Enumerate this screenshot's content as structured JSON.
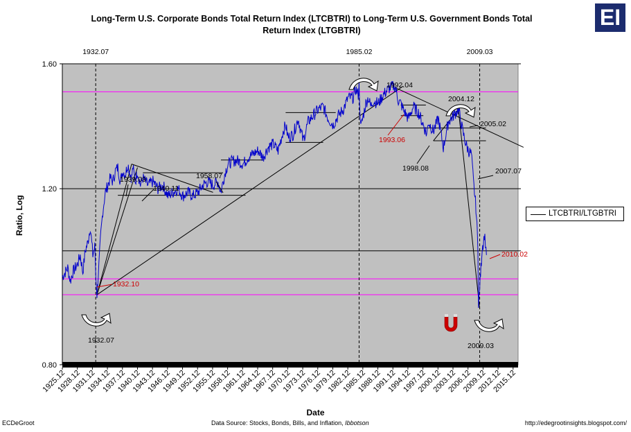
{
  "chart_data": {
    "type": "line",
    "title": "Long-Term U.S. Corporate Bonds Total Return Index (LTCBTRI) to Long-Term U.S. Government Bonds Total Return Index (LTGBTRI)",
    "title_line1": "Long-Term U.S. Corporate Bonds Total Return Index (LTCBTRI) to Long-Term U.S. Government Bonds Total",
    "title_line2": "Return Index (LTGBTRI)",
    "xlabel": "Date",
    "ylabel": "Ratio, Log",
    "y_scale": "log",
    "ylim": [
      0.8,
      1.6
    ],
    "xlim": [
      1925.917,
      2016.917
    ],
    "y_ticks": [
      "1.60",
      "1.20",
      "0.80"
    ],
    "x_ticks": [
      "1925.12",
      "1928.12",
      "1931.12",
      "1934.12",
      "1937.12",
      "1940.12",
      "1943.12",
      "1946.12",
      "1949.12",
      "1952.12",
      "1955.12",
      "1958.12",
      "1961.12",
      "1964.12",
      "1967.12",
      "1970.12",
      "1973.12",
      "1976.12",
      "1979.12",
      "1982.12",
      "1985.12",
      "1988.12",
      "1991.12",
      "1994.12",
      "1997.12",
      "2000.12",
      "2003.12",
      "2006.12",
      "2009.12",
      "2012.12",
      "2015.12"
    ],
    "grid": "horizontal",
    "legend_position": "right",
    "series": [
      {
        "name": "LTCBTRI/LTGBTRI",
        "color": "#0000cc",
        "x": [
          1925.92,
          1926.5,
          1927.0,
          1927.5,
          1928.0,
          1928.5,
          1929.0,
          1929.5,
          1930.0,
          1930.5,
          1931.0,
          1931.5,
          1932.0,
          1932.4,
          1932.6,
          1932.83,
          1933.0,
          1933.3,
          1933.6,
          1934.0,
          1934.5,
          1935.0,
          1935.5,
          1936.0,
          1936.5,
          1937.0,
          1937.5,
          1938.0,
          1938.5,
          1939.0,
          1939.5,
          1939.75,
          1940.0,
          1940.5,
          1940.92,
          1941.5,
          1942.0,
          1943.0,
          1944.0,
          1945.0,
          1946.0,
          1947.0,
          1948.0,
          1949.0,
          1950.0,
          1951.0,
          1952.0,
          1953.0,
          1954.0,
          1955.0,
          1956.0,
          1957.0,
          1957.58,
          1958.0,
          1958.5,
          1959.0,
          1960.0,
          1961.0,
          1962.0,
          1963.0,
          1964.0,
          1965.0,
          1966.0,
          1967.0,
          1968.0,
          1969.0,
          1970.0,
          1970.5,
          1971.0,
          1972.0,
          1973.0,
          1974.0,
          1975.0,
          1976.0,
          1977.0,
          1978.0,
          1979.0,
          1980.0,
          1981.0,
          1982.0,
          1983.0,
          1984.0,
          1984.5,
          1985.0,
          1985.17,
          1985.5,
          1986.0,
          1986.5,
          1987.0,
          1987.5,
          1988.0,
          1989.0,
          1990.0,
          1991.0,
          1992.0,
          1992.33,
          1993.0,
          1993.5,
          1994.0,
          1995.0,
          1996.0,
          1997.0,
          1998.0,
          1998.67,
          1999.0,
          2000.0,
          2001.0,
          2002.0,
          2003.0,
          2004.0,
          2004.92,
          2005.17,
          2005.5,
          2006.0,
          2006.5,
          2007.0,
          2007.58,
          2008.0,
          2008.5,
          2008.9,
          2009.0,
          2009.25,
          2009.5,
          2009.75,
          2010.0,
          2010.17,
          2010.4,
          2010.6
        ],
        "y": [
          0.98,
          0.99,
          1.0,
          0.97,
          0.99,
          1.0,
          1.01,
          1.03,
          0.99,
          1.04,
          1.06,
          1.1,
          1.03,
          1.05,
          0.98,
          0.94,
          0.97,
          1.02,
          1.08,
          1.14,
          1.19,
          1.21,
          1.23,
          1.22,
          1.25,
          1.26,
          1.22,
          1.25,
          1.24,
          1.27,
          1.24,
          1.23,
          1.26,
          1.22,
          1.25,
          1.21,
          1.23,
          1.21,
          1.22,
          1.2,
          1.21,
          1.18,
          1.19,
          1.2,
          1.18,
          1.19,
          1.18,
          1.19,
          1.21,
          1.22,
          1.21,
          1.22,
          1.19,
          1.22,
          1.25,
          1.27,
          1.28,
          1.28,
          1.27,
          1.29,
          1.3,
          1.31,
          1.29,
          1.32,
          1.33,
          1.31,
          1.37,
          1.39,
          1.35,
          1.36,
          1.41,
          1.34,
          1.4,
          1.42,
          1.44,
          1.45,
          1.41,
          1.39,
          1.42,
          1.44,
          1.48,
          1.48,
          1.51,
          1.49,
          1.52,
          1.38,
          1.42,
          1.46,
          1.48,
          1.45,
          1.47,
          1.46,
          1.49,
          1.51,
          1.52,
          1.52,
          1.47,
          1.46,
          1.44,
          1.41,
          1.45,
          1.43,
          1.39,
          1.36,
          1.4,
          1.37,
          1.41,
          1.32,
          1.4,
          1.42,
          1.44,
          1.43,
          1.4,
          1.36,
          1.33,
          1.31,
          1.3,
          1.22,
          1.15,
          1.05,
          0.91,
          0.96,
          1.0,
          1.05,
          1.06,
          1.08,
          1.06,
          1.03
        ]
      }
    ],
    "vertical_markers": [
      {
        "x": 1932.58,
        "label": "1932.07"
      },
      {
        "x": 1985.17,
        "label": "1985.02"
      },
      {
        "x": 2009.25,
        "label": "2009.03"
      }
    ],
    "annotations": [
      {
        "label": "1939.09",
        "color": "#000000"
      },
      {
        "label": "1940.11",
        "color": "#000000"
      },
      {
        "label": "1958.07",
        "color": "#000000"
      },
      {
        "label": "1932.10",
        "color": "#cc0000"
      },
      {
        "label": "1932.07",
        "color": "#000000"
      },
      {
        "label": "1992.04",
        "color": "#000000"
      },
      {
        "label": "1993.06",
        "color": "#cc0000"
      },
      {
        "label": "1998.08",
        "color": "#000000"
      },
      {
        "label": "2004.12",
        "color": "#000000"
      },
      {
        "label": "2005.02",
        "color": "#000000"
      },
      {
        "label": "2007.07",
        "color": "#000000"
      },
      {
        "label": "2010.02",
        "color": "#cc0000"
      },
      {
        "label": "2009.03",
        "color": "#000000"
      }
    ],
    "colors": {
      "plot_background": "#c0c0c0",
      "series": "#0000cc",
      "trend_lines": "#000000",
      "magenta_lines": "#ff00ff",
      "red_annotation": "#cc0000"
    }
  },
  "logo_text": "EI",
  "footer": {
    "left": "ECDeGroot",
    "source_prefix": "Data Source:  Stocks, Bonds, Bills, and Inflation,",
    "source_italic": "Ibbotson",
    "right": "http://edegrootinsights.blogspot.com/"
  }
}
